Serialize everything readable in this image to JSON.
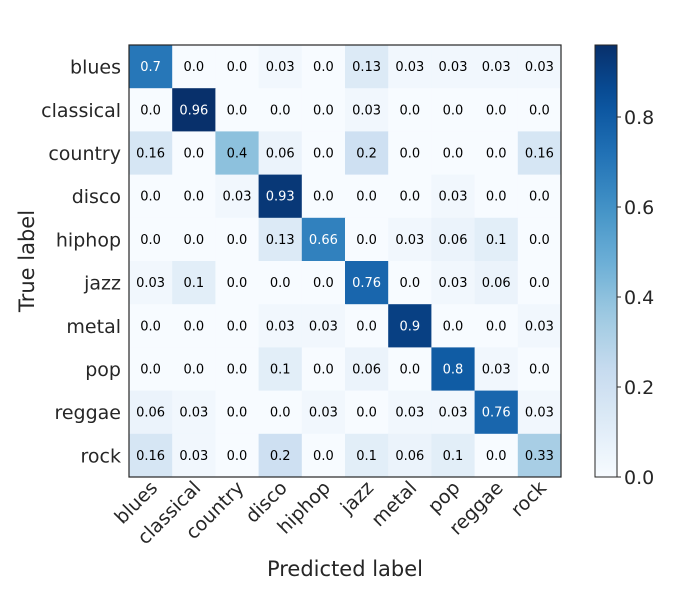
{
  "chart_data": {
    "type": "heatmap",
    "title": "",
    "xlabel": "Predicted label",
    "ylabel": "True label",
    "x_categories": [
      "blues",
      "classical",
      "country",
      "disco",
      "hiphop",
      "jazz",
      "metal",
      "pop",
      "reggae",
      "rock"
    ],
    "y_categories": [
      "blues",
      "classical",
      "country",
      "disco",
      "hiphop",
      "jazz",
      "metal",
      "pop",
      "reggae",
      "rock"
    ],
    "values": [
      [
        "0.7",
        "0.0",
        "0.0",
        "0.03",
        "0.0",
        "0.13",
        "0.03",
        "0.03",
        "0.03",
        "0.03"
      ],
      [
        "0.0",
        "0.96",
        "0.0",
        "0.0",
        "0.0",
        "0.03",
        "0.0",
        "0.0",
        "0.0",
        "0.0"
      ],
      [
        "0.16",
        "0.0",
        "0.4",
        "0.06",
        "0.0",
        "0.2",
        "0.0",
        "0.0",
        "0.0",
        "0.16"
      ],
      [
        "0.0",
        "0.0",
        "0.03",
        "0.93",
        "0.0",
        "0.0",
        "0.0",
        "0.03",
        "0.0",
        "0.0"
      ],
      [
        "0.0",
        "0.0",
        "0.0",
        "0.13",
        "0.66",
        "0.0",
        "0.03",
        "0.06",
        "0.1",
        "0.0"
      ],
      [
        "0.03",
        "0.1",
        "0.0",
        "0.0",
        "0.0",
        "0.76",
        "0.0",
        "0.03",
        "0.06",
        "0.0"
      ],
      [
        "0.0",
        "0.0",
        "0.0",
        "0.03",
        "0.03",
        "0.0",
        "0.9",
        "0.0",
        "0.0",
        "0.03"
      ],
      [
        "0.0",
        "0.0",
        "0.0",
        "0.1",
        "0.0",
        "0.06",
        "0.0",
        "0.8",
        "0.03",
        "0.0"
      ],
      [
        "0.06",
        "0.03",
        "0.0",
        "0.0",
        "0.03",
        "0.0",
        "0.03",
        "0.03",
        "0.76",
        "0.03"
      ],
      [
        "0.16",
        "0.03",
        "0.0",
        "0.2",
        "0.0",
        "0.1",
        "0.06",
        "0.1",
        "0.0",
        "0.33"
      ]
    ],
    "colormap": "Blues",
    "vmin": 0.0,
    "vmax": 0.96,
    "colorbar_ticks": [
      "0.0",
      "0.2",
      "0.4",
      "0.6",
      "0.8"
    ],
    "grid": false,
    "x_tick_rotation": "45"
  }
}
